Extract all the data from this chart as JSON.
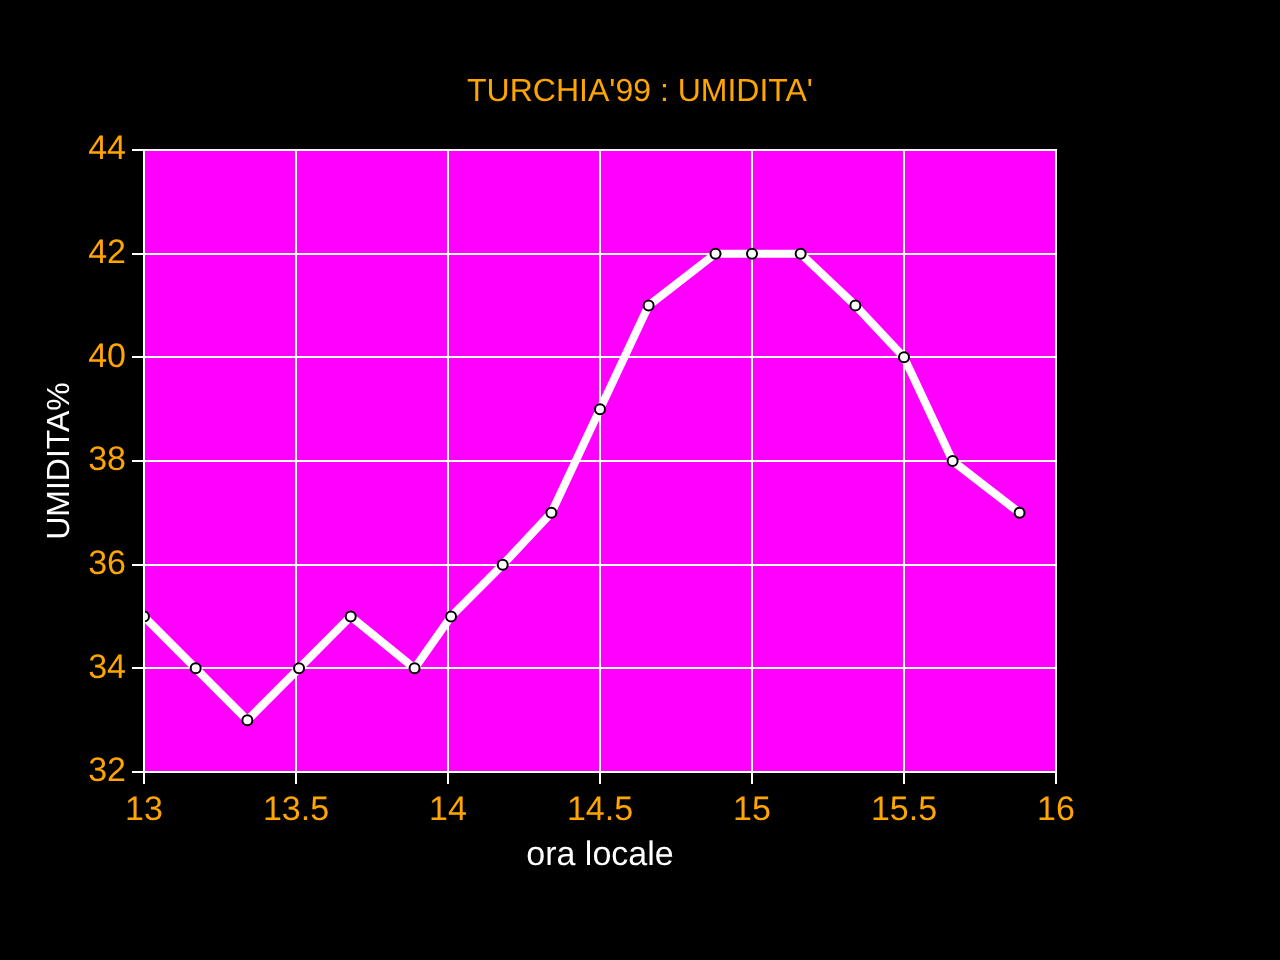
{
  "chart_data": {
    "type": "line",
    "title": "TURCHIA'99 : UMIDITA'",
    "xlabel": "ora locale",
    "ylabel": "UMIDITA%",
    "x": [
      13,
      13.17,
      13.34,
      13.51,
      13.68,
      13.89,
      14.01,
      14.18,
      14.34,
      14.5,
      14.66,
      14.88,
      15,
      15.16,
      15.34,
      15.5,
      15.66,
      15.88
    ],
    "series": [
      {
        "color": "#ffffff",
        "values": [
          35,
          34,
          33,
          34,
          35,
          34,
          35,
          36,
          37,
          39,
          41,
          42,
          42,
          42,
          41,
          40,
          38,
          37
        ]
      }
    ],
    "xlim": [
      13,
      16
    ],
    "xticks": [
      13,
      13.5,
      14,
      14.5,
      15,
      15.5,
      16
    ],
    "ylim": [
      32,
      44
    ],
    "yticks": [
      32,
      34,
      36,
      38,
      40,
      42,
      44
    ],
    "grid": true,
    "legend": false,
    "marker": "circle",
    "line_style": "solid"
  }
}
